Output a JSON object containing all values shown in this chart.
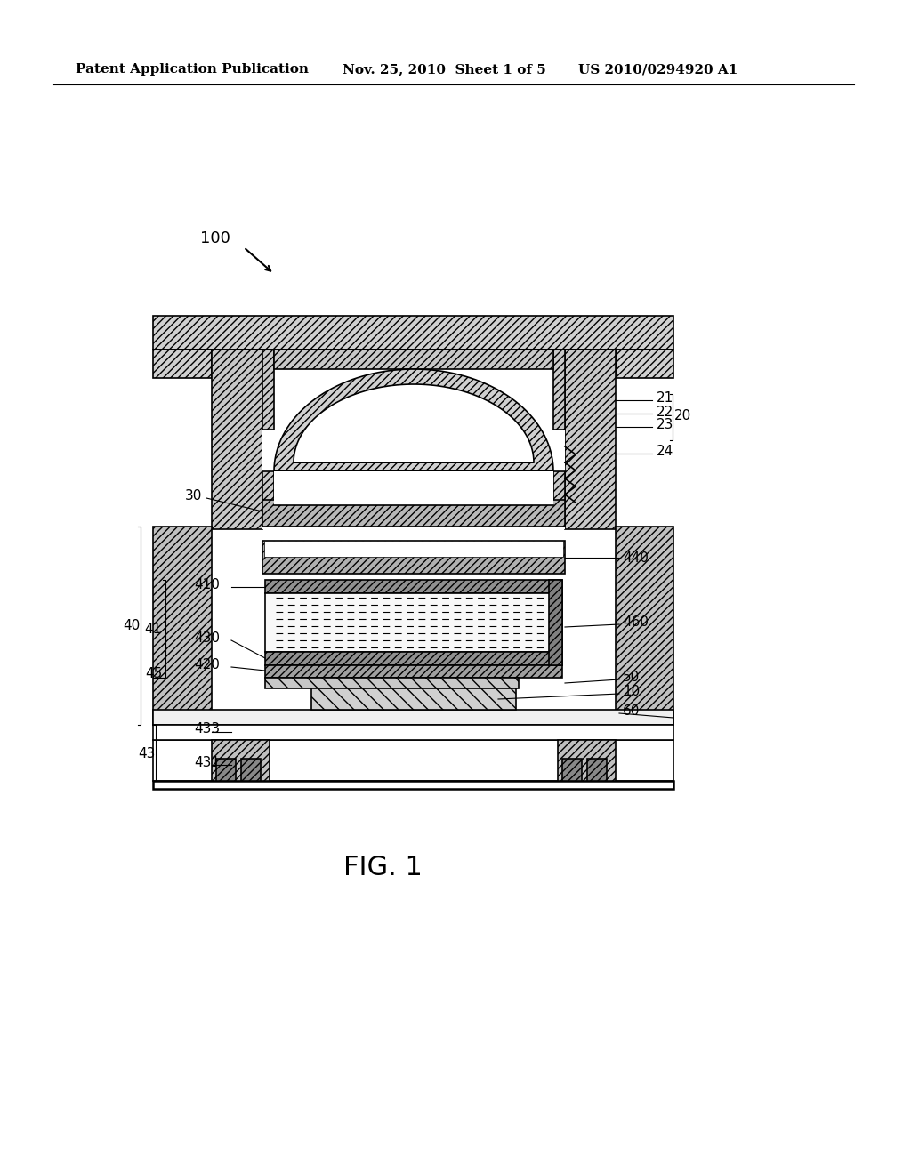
{
  "header_left": "Patent Application Publication",
  "header_mid": "Nov. 25, 2010  Sheet 1 of 5",
  "header_right": "US 2010/0294920 A1",
  "fig_label": "FIG. 1",
  "background": "#ffffff",
  "line_color": "#000000"
}
